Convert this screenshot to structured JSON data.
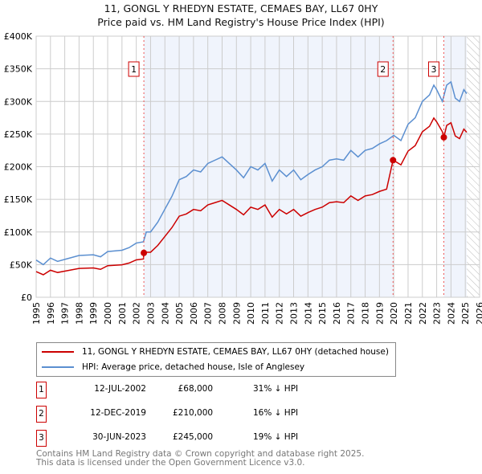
{
  "title": "11, GONGL Y RHEDYN ESTATE, CEMAES BAY, LL67 0HY",
  "subtitle": "Price paid vs. HM Land Registry's House Price Index (HPI)",
  "chart_data": {
    "type": "line",
    "xlim": [
      1995,
      2026
    ],
    "ylim": [
      0,
      400000
    ],
    "yticks": [
      "£0",
      "£50K",
      "£100K",
      "£150K",
      "£200K",
      "£250K",
      "£300K",
      "£350K",
      "£400K"
    ],
    "xticks": [
      "1995",
      "1996",
      "1997",
      "1998",
      "1999",
      "2000",
      "2001",
      "2002",
      "2003",
      "2004",
      "2005",
      "2006",
      "2007",
      "2008",
      "2009",
      "2010",
      "2011",
      "2012",
      "2013",
      "2014",
      "2015",
      "2016",
      "2017",
      "2018",
      "2019",
      "2020",
      "2021",
      "2022",
      "2023",
      "2024",
      "2025",
      "2026"
    ],
    "hpi_series": {
      "name": "HPI: Average price, detached house, Isle of Anglesey",
      "color": "#5b8fd0",
      "x": [
        1995,
        1995.5,
        1996,
        1996.5,
        1997,
        1998,
        1999,
        1999.5,
        2000,
        2001,
        2001.5,
        2002,
        2002.5,
        2002.7,
        2003,
        2003.5,
        2004,
        2004.5,
        2005,
        2005.5,
        2006,
        2006.5,
        2007,
        2007.5,
        2008,
        2008.5,
        2009,
        2009.5,
        2010,
        2010.5,
        2011,
        2011.5,
        2012,
        2012.5,
        2013,
        2013.5,
        2014,
        2014.5,
        2015,
        2015.5,
        2016,
        2016.5,
        2017,
        2017.5,
        2018,
        2018.5,
        2019,
        2019.5,
        2020,
        2020.5,
        2021,
        2021.5,
        2022,
        2022.5,
        2022.8,
        2023,
        2023.4,
        2023.7,
        2024,
        2024.3,
        2024.6,
        2024.9,
        2025.1
      ],
      "y": [
        57000,
        50000,
        60000,
        55000,
        58000,
        64000,
        65000,
        62000,
        70000,
        72000,
        76000,
        83000,
        85000,
        100000,
        100000,
        115000,
        135000,
        155000,
        180000,
        185000,
        195000,
        192000,
        205000,
        210000,
        215000,
        205000,
        195000,
        183000,
        200000,
        195000,
        205000,
        178000,
        195000,
        185000,
        195000,
        180000,
        188000,
        195000,
        200000,
        210000,
        212000,
        210000,
        225000,
        215000,
        225000,
        228000,
        235000,
        240000,
        248000,
        240000,
        265000,
        275000,
        300000,
        310000,
        325000,
        318000,
        300000,
        325000,
        330000,
        305000,
        300000,
        318000,
        312000
      ]
    },
    "property_series": {
      "name": "11, GONGL Y RHEDYN ESTATE, CEMAES BAY, LL67 0HY (detached house)",
      "color": "#cc0000",
      "ratios": [
        [
          2019.95,
          0.69
        ],
        [
          2023.5,
          0.845
        ],
        [
          2030,
          0.81
        ]
      ]
    },
    "sales": [
      {
        "n": "1",
        "date": "12-JUL-2002",
        "x": 2002.53,
        "price": 68000,
        "price_label": "£68,000",
        "hpi": "31% ↓ HPI"
      },
      {
        "n": "2",
        "date": "12-DEC-2019",
        "x": 2019.95,
        "price": 210000,
        "price_label": "£210,000",
        "hpi": "16% ↓ HPI"
      },
      {
        "n": "3",
        "date": "30-JUN-2023",
        "x": 2023.5,
        "price": 245000,
        "price_label": "£245,000",
        "hpi": "19% ↓ HPI"
      }
    ],
    "legend": [
      "11, GONGL Y RHEDYN ESTATE, CEMAES BAY, LL67 0HY (detached house)",
      "HPI: Average price, detached house, Isle of Anglesey"
    ],
    "legend_placement": "bottom"
  },
  "footer": [
    "Contains HM Land Registry data © Crown copyright and database right 2025.",
    "This data is licensed under the Open Government Licence v3.0."
  ]
}
